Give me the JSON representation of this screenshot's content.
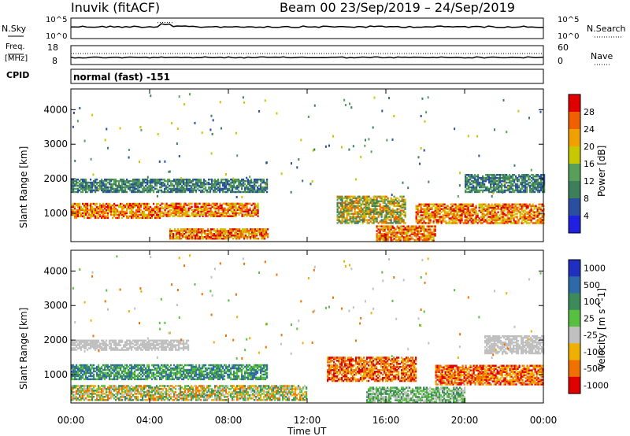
{
  "header": {
    "station": "Inuvik (fitACF)",
    "beam_and_dates": "Beam 00  23/Sep/2019 – 24/Sep/2019"
  },
  "params": {
    "nsky_label": "N.Sky",
    "nsearch_label": "N.Search",
    "freq_label_line1": "Freq.",
    "freq_label_line2": "[MHz]",
    "nave_label": "Nave",
    "cpid_label": "CPID",
    "cpid_value": "normal (fast) -151",
    "nsky_ticks": [
      "10^5",
      "10^0"
    ],
    "nsearch_ticks": [
      "10^5",
      "10^0"
    ],
    "freq_ticks": [
      "18",
      "8"
    ],
    "nave_ticks": [
      "60",
      "0"
    ]
  },
  "colors": {
    "power": [
      "#2020e0",
      "#2a4fa0",
      "#3d7f5a",
      "#58a05a",
      "#c8c800",
      "#f0a000",
      "#f06000",
      "#e00000"
    ],
    "velocity": [
      "#1f2fbf",
      "#2f6aa8",
      "#3d8a5a",
      "#58c040",
      "#c0c0c0",
      "#f0b000",
      "#f07000",
      "#e00000"
    ]
  },
  "chart_data": [
    {
      "type": "heatmap",
      "name": "power-panel",
      "ylabel": "Slant Range [km]",
      "xlabel": "Time UT",
      "xlim": [
        0,
        24
      ],
      "ylim": [
        180,
        4600
      ],
      "x_ticks": [
        "00:00",
        "04:00",
        "08:00",
        "12:00",
        "16:00",
        "20:00",
        "00:00"
      ],
      "y_ticks": [
        1000,
        2000,
        3000,
        4000
      ],
      "colorbar": {
        "label": "Power [dB]",
        "ticks": [
          "4",
          "8",
          "12",
          "16",
          "20",
          "24",
          "28"
        ],
        "range": [
          0,
          30
        ]
      },
      "bands": [
        {
          "t0": 0.0,
          "t1": 4.5,
          "r0": 850,
          "r1": 1300,
          "level": "high"
        },
        {
          "t0": 4.5,
          "t1": 9.5,
          "r0": 900,
          "r1": 1300,
          "level": "high"
        },
        {
          "t0": 5.0,
          "t1": 10.0,
          "r0": 250,
          "r1": 550,
          "level": "high"
        },
        {
          "t0": 13.5,
          "t1": 17.0,
          "r0": 700,
          "r1": 1500,
          "level": "mid"
        },
        {
          "t0": 15.5,
          "t1": 18.5,
          "r0": 200,
          "r1": 650,
          "level": "high"
        },
        {
          "t0": 17.5,
          "t1": 24.0,
          "r0": 700,
          "r1": 1250,
          "level": "high"
        },
        {
          "t0": 0.0,
          "t1": 10.0,
          "r0": 1600,
          "r1": 2000,
          "level": "low"
        },
        {
          "t0": 20.0,
          "t1": 24.0,
          "r0": 1600,
          "r1": 2100,
          "level": "low"
        }
      ]
    },
    {
      "type": "heatmap",
      "name": "velocity-panel",
      "ylabel": "Slant Range [km]",
      "xlabel": "Time UT",
      "xlim": [
        0,
        24
      ],
      "ylim": [
        180,
        4600
      ],
      "x_ticks": [
        "00:00",
        "04:00",
        "08:00",
        "12:00",
        "16:00",
        "20:00",
        "00:00"
      ],
      "y_ticks": [
        1000,
        2000,
        3000,
        4000
      ],
      "colorbar": {
        "label": "Velocity [m s^-1]",
        "ticks": [
          "1000",
          "500",
          "100",
          "25",
          "-25",
          "-100",
          "-500",
          "-1000"
        ]
      },
      "bands": [
        {
          "t0": 0.0,
          "t1": 10.0,
          "r0": 850,
          "r1": 1300,
          "level": "pos"
        },
        {
          "t0": 0.0,
          "t1": 12.0,
          "r0": 250,
          "r1": 700,
          "level": "mixed"
        },
        {
          "t0": 13.0,
          "t1": 17.5,
          "r0": 800,
          "r1": 1500,
          "level": "neg"
        },
        {
          "t0": 15.0,
          "t1": 20.0,
          "r0": 200,
          "r1": 650,
          "level": "grn"
        },
        {
          "t0": 18.5,
          "t1": 24.0,
          "r0": 700,
          "r1": 1250,
          "level": "neg"
        },
        {
          "t0": 0.0,
          "t1": 6.0,
          "r0": 1700,
          "r1": 2000,
          "level": "gry"
        },
        {
          "t0": 21.0,
          "t1": 24.0,
          "r0": 1600,
          "r1": 2100,
          "level": "gry"
        }
      ]
    }
  ]
}
